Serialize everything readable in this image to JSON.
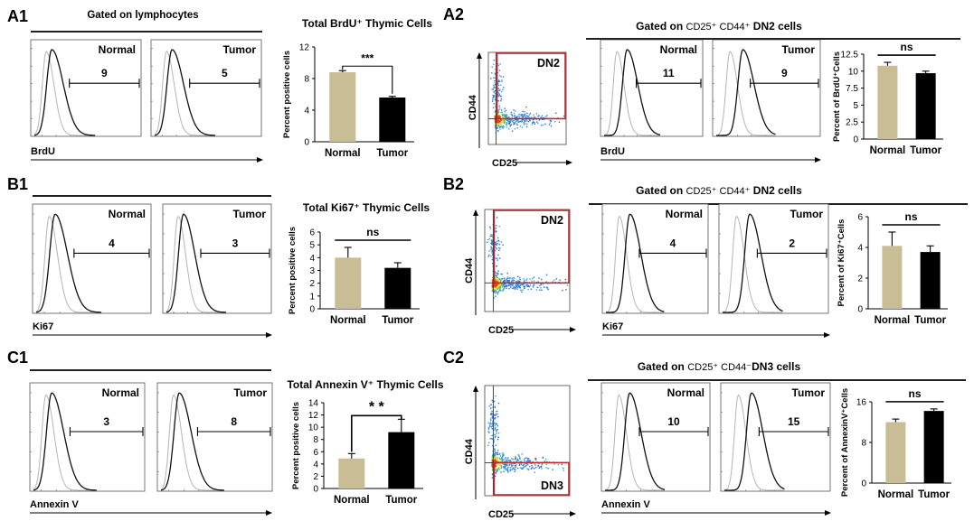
{
  "panels": {
    "A1": {
      "label": "A1",
      "header": "Gated on lymphocytes",
      "axis": "BrdU",
      "hist": [
        {
          "label": "Normal",
          "gate": "9"
        },
        {
          "label": "Tumor",
          "gate": "5"
        }
      ]
    },
    "A2": {
      "label": "A2",
      "dot": {
        "y": "CD44",
        "x": "CD25",
        "gate": "DN2"
      },
      "header_prefix": "Gated on ",
      "header_marker": "CD25⁺ CD44⁺",
      "header_suffix": " DN2 cells",
      "axis": "BrdU",
      "hist": [
        {
          "label": "Normal",
          "gate": "11"
        },
        {
          "label": "Tumor",
          "gate": "9"
        }
      ]
    },
    "B1": {
      "label": "B1",
      "axis": "Ki67",
      "hist": [
        {
          "label": "Normal",
          "gate": "4"
        },
        {
          "label": "Tumor",
          "gate": "3"
        }
      ]
    },
    "B2": {
      "label": "B2",
      "dot": {
        "y": "CD44",
        "x": "CD25",
        "gate": "DN2"
      },
      "header_prefix": "Gated on ",
      "header_marker": "CD25⁺ CD44⁺",
      "header_suffix": " DN2 cells",
      "axis": "Ki67",
      "hist": [
        {
          "label": "Normal",
          "gate": "4"
        },
        {
          "label": "Tumor",
          "gate": "2"
        }
      ]
    },
    "C1": {
      "label": "C1",
      "axis": "Annexin V",
      "hist": [
        {
          "label": "Normal",
          "gate": "3"
        },
        {
          "label": "Tumor",
          "gate": "8"
        }
      ]
    },
    "C2": {
      "label": "C2",
      "dot": {
        "y": "CD44",
        "x": "CD25",
        "gate": "DN3"
      },
      "header_prefix": "Gated on ",
      "header_marker": "CD25⁺ CD44⁻",
      "header_suffix": "DN3 cells",
      "axis": "Annexin V",
      "hist": [
        {
          "label": "Normal",
          "gate": "10"
        },
        {
          "label": "Tumor",
          "gate": "15"
        }
      ]
    }
  },
  "chart_data": [
    {
      "id": "A1",
      "type": "bar",
      "title": "Total BrdU⁺ Thymic Cells",
      "categories": [
        "Normal",
        "Tumor"
      ],
      "values": [
        8.8,
        5.6
      ],
      "errors": [
        0.2,
        0.15
      ],
      "ylabel": "Percent positive cells",
      "ylim": [
        0,
        12
      ],
      "yticks": [
        "0",
        "4",
        "8",
        "12"
      ],
      "significance": "***",
      "colors": [
        "#c8bd95",
        "#000000"
      ]
    },
    {
      "id": "A2",
      "type": "bar",
      "title": "",
      "categories": [
        "Normal",
        "Tumor"
      ],
      "values": [
        10.8,
        9.7
      ],
      "errors": [
        0.5,
        0.3
      ],
      "ylabel": "Percent of BrdU⁺Cells",
      "ylim": [
        0,
        12.5
      ],
      "yticks": [
        "0",
        "2.5",
        "5",
        "7.5",
        "10",
        "12.5"
      ],
      "significance": "ns",
      "colors": [
        "#c8bd95",
        "#000000"
      ]
    },
    {
      "id": "B1",
      "type": "bar",
      "title": "Total Ki67⁺ Thymic Cells",
      "categories": [
        "Normal",
        "Tumor"
      ],
      "values": [
        4.0,
        3.2
      ],
      "errors": [
        0.8,
        0.4
      ],
      "ylabel": "Percent positive cells",
      "ylim": [
        0,
        6
      ],
      "yticks": [
        "0",
        "1",
        "2",
        "3",
        "4",
        "5",
        "6"
      ],
      "significance": "ns",
      "colors": [
        "#c8bd95",
        "#000000"
      ]
    },
    {
      "id": "B2",
      "type": "bar",
      "title": "",
      "categories": [
        "Normal",
        "Tumor"
      ],
      "values": [
        4.1,
        3.7
      ],
      "errors": [
        0.9,
        0.4
      ],
      "ylabel": "Percent of Ki67⁺Cells",
      "ylim": [
        0,
        6
      ],
      "yticks": [
        "0",
        "2",
        "4",
        "6"
      ],
      "significance": "ns",
      "colors": [
        "#c8bd95",
        "#000000"
      ]
    },
    {
      "id": "C1",
      "type": "bar",
      "title": "Total Annexin V⁺ Thymic Cells",
      "categories": [
        "Normal",
        "Tumor"
      ],
      "values": [
        4.9,
        9.2
      ],
      "errors": [
        0.8,
        2.1
      ],
      "ylabel": "Percent positive cells",
      "ylim": [
        0,
        14
      ],
      "yticks": [
        "0",
        "2",
        "4",
        "6",
        "8",
        "10",
        "12",
        "14"
      ],
      "significance": "* *",
      "colors": [
        "#c8bd95",
        "#000000"
      ]
    },
    {
      "id": "C2",
      "type": "bar",
      "title": "",
      "categories": [
        "Normal",
        "Tumor"
      ],
      "values": [
        12.0,
        14.2
      ],
      "errors": [
        0.6,
        0.4
      ],
      "ylabel": "Percent of AnnexinV⁺Cells",
      "ylim": [
        0,
        16
      ],
      "yticks": [
        "0",
        "8",
        "16"
      ],
      "significance": "ns",
      "colors": [
        "#c8bd95",
        "#000000"
      ]
    }
  ]
}
